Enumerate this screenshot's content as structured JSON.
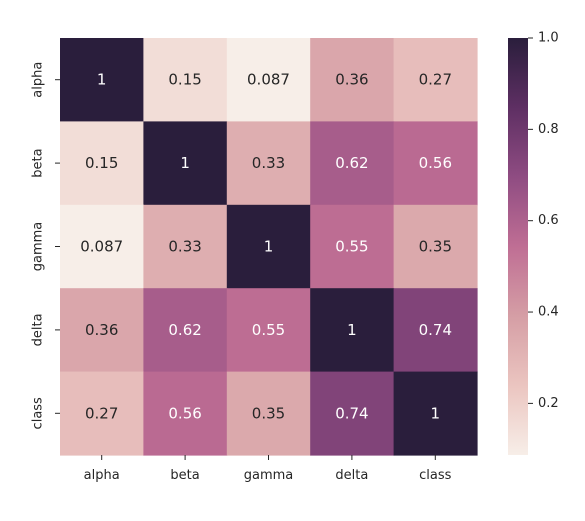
{
  "chart_data": {
    "type": "heatmap",
    "title": "",
    "xlabel": "",
    "ylabel": "",
    "x_labels": [
      "alpha",
      "beta",
      "gamma",
      "delta",
      "class"
    ],
    "y_labels": [
      "alpha",
      "beta",
      "gamma",
      "delta",
      "class"
    ],
    "matrix": [
      [
        1,
        0.15,
        0.087,
        0.36,
        0.27
      ],
      [
        0.15,
        1,
        0.33,
        0.62,
        0.56
      ],
      [
        0.087,
        0.33,
        1,
        0.55,
        0.35
      ],
      [
        0.36,
        0.62,
        0.55,
        1,
        0.74
      ],
      [
        0.27,
        0.56,
        0.35,
        0.74,
        1
      ]
    ],
    "annotations": [
      [
        "1",
        "0.15",
        "0.087",
        "0.36",
        "0.27"
      ],
      [
        "0.15",
        "1",
        "0.33",
        "0.62",
        "0.56"
      ],
      [
        "0.087",
        "0.33",
        "1",
        "0.55",
        "0.35"
      ],
      [
        "0.36",
        "0.62",
        "0.55",
        "1",
        "0.74"
      ],
      [
        "0.27",
        "0.56",
        "0.35",
        "0.74",
        "1"
      ]
    ],
    "colorbar": {
      "vmin": 0.087,
      "vmax": 1.0,
      "ticks": [
        0.2,
        0.4,
        0.6,
        0.8,
        1.0
      ],
      "tick_labels": [
        "0.2",
        "0.4",
        "0.6",
        "0.8",
        "1.0"
      ]
    },
    "colormap": {
      "stops": [
        "#f7eee8",
        "#ebc5c0",
        "#d59ea5",
        "#bf6e94",
        "#8f4c82",
        "#5e2f63",
        "#2a1e3c"
      ],
      "light_text": "#ffffff",
      "dark_text": "#262626"
    }
  }
}
